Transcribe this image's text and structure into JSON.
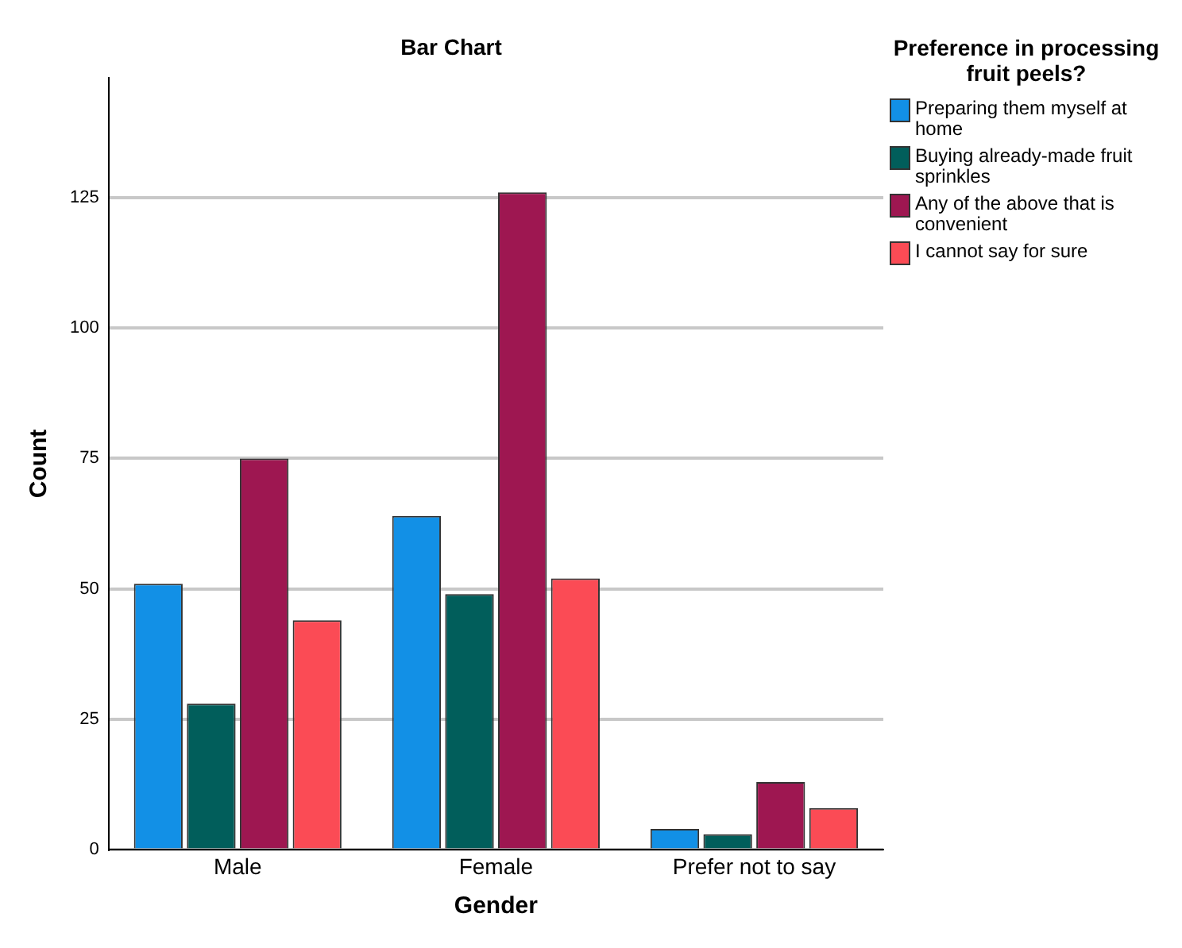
{
  "chart_data": {
    "type": "bar",
    "title": "Bar Chart",
    "xlabel": "Gender",
    "ylabel": "Count",
    "legend_title": "Preference in processing fruit peels?",
    "categories": [
      "Male",
      "Female",
      "Prefer not to say"
    ],
    "series": [
      {
        "name": "Preparing them myself at home",
        "color": "#1290e6",
        "values": [
          51,
          64,
          4
        ]
      },
      {
        "name": "Buying already-made fruit sprinkles",
        "color": "#015e5b",
        "values": [
          28,
          49,
          3
        ]
      },
      {
        "name": "Any of the above that is convenient",
        "color": "#9e1751",
        "values": [
          75,
          126,
          13
        ]
      },
      {
        "name": "I cannot say for sure",
        "color": "#fb4b55",
        "values": [
          44,
          52,
          8
        ]
      }
    ],
    "ylim": [
      0,
      148
    ],
    "yticks": [
      0,
      25,
      50,
      75,
      100,
      125
    ],
    "grid": "y",
    "legend": "top right"
  }
}
